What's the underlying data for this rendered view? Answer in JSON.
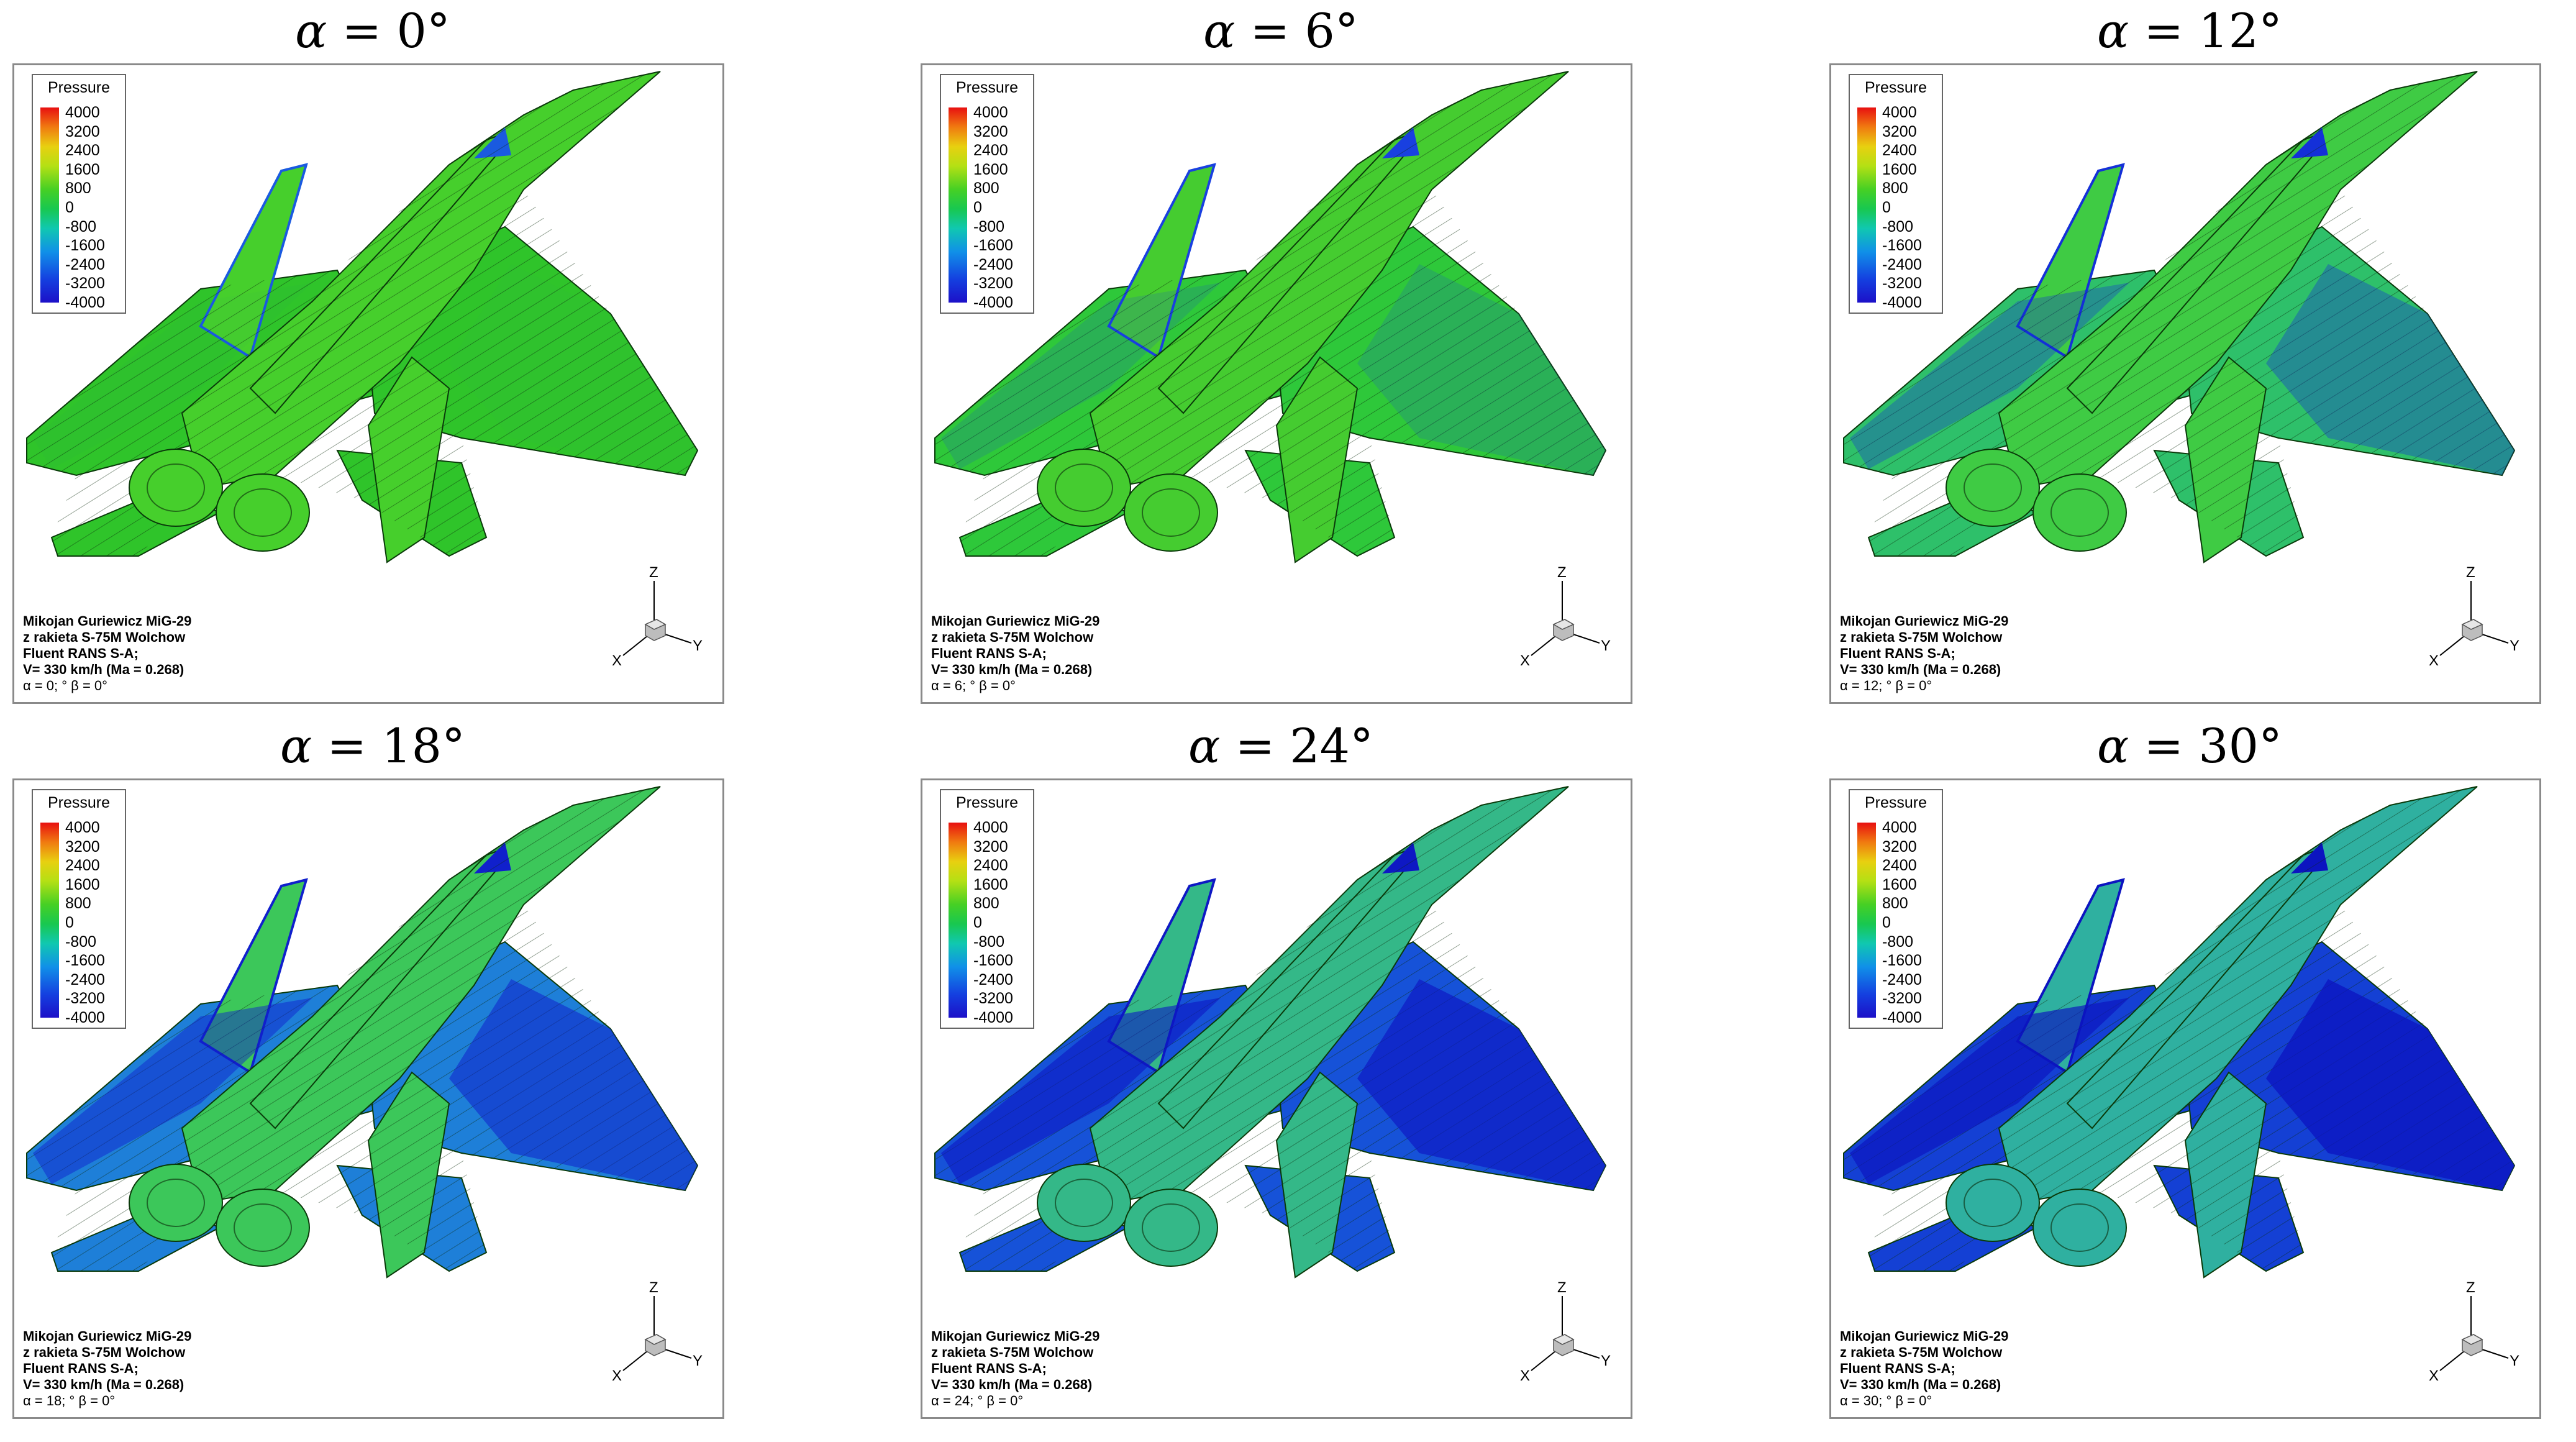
{
  "panels": [
    {
      "alpha_text": "0",
      "alpha_meta": "0",
      "wing_color": "#2fc42a",
      "body_color": "#46cf2c",
      "accent_color": "#1a5ae0",
      "blue_level": 0.02
    },
    {
      "alpha_text": "6",
      "alpha_meta": "6",
      "wing_color": "#2ec83a",
      "body_color": "#45cc30",
      "accent_color": "#1940e0",
      "blue_level": 0.2
    },
    {
      "alpha_text": "12",
      "alpha_meta": "12",
      "wing_color": "#2ec06a",
      "body_color": "#3fcb44",
      "accent_color": "#1430d8",
      "blue_level": 0.4
    },
    {
      "alpha_text": "18",
      "alpha_meta": "18",
      "wing_color": "#1e7fd8",
      "body_color": "#3cc75a",
      "accent_color": "#1020cc",
      "blue_level": 0.6
    },
    {
      "alpha_text": "24",
      "alpha_meta": "24",
      "wing_color": "#1652d8",
      "body_color": "#34b888",
      "accent_color": "#0e18c4",
      "blue_level": 0.75
    },
    {
      "alpha_text": "30",
      "alpha_meta": "30",
      "wing_color": "#1440d4",
      "body_color": "#2fb0a0",
      "accent_color": "#0c14c0",
      "blue_level": 0.85
    }
  ],
  "alpha_symbol": "α",
  "equals": " = ",
  "degree": "°",
  "legend": {
    "title": "Pressure",
    "ticks": [
      "4000",
      "3200",
      "2400",
      "1600",
      "800",
      "0",
      "-800",
      "-1600",
      "-2400",
      "-3200",
      "-4000"
    ]
  },
  "info": {
    "line1": "Mikojan Guriewicz MiG-29",
    "line2": "z rakieta S-75M Wolchow",
    "line3": "Fluent RANS S-A;",
    "line4": "V= 330 km/h (Ma = 0.268)",
    "meta_prefix": "α = ",
    "meta_suffix": "; ° β = 0°"
  },
  "axes": {
    "z": "Z",
    "x": "X",
    "y": "Y"
  }
}
